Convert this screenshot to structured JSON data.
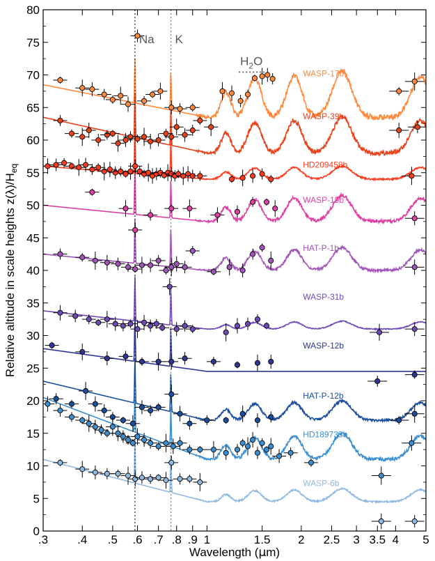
{
  "chart_data": {
    "type": "scatter",
    "title": "",
    "xlabel_parts": [
      "Wavelength  (",
      "µ",
      "m)"
    ],
    "ylabel_parts": [
      "Relative altitude in scale heights  z(λ)/H",
      "eq"
    ],
    "x_scale": "log",
    "xlim": [
      0.3,
      5.0
    ],
    "ylim": [
      0,
      80
    ],
    "x_ticks": [
      0.3,
      0.4,
      0.5,
      0.6,
      0.7,
      0.8,
      0.9,
      1,
      1.5,
      2,
      2.5,
      3,
      3.5,
      4,
      5
    ],
    "x_tick_labels": [
      ".3",
      ".4",
      ".5",
      ".6",
      ".7",
      ".8",
      ".9",
      "1",
      "1.5",
      "2",
      "2.5",
      "3",
      "3.5",
      "4",
      "5"
    ],
    "y_ticks": [
      0,
      5,
      10,
      15,
      20,
      25,
      30,
      35,
      40,
      45,
      50,
      55,
      60,
      65,
      70,
      75,
      80
    ],
    "y_tick_labels": [
      "0",
      "5",
      "10",
      "15",
      "20",
      "25",
      "30",
      "35",
      "40",
      "45",
      "50",
      "55",
      "60",
      "65",
      "70",
      "75",
      "80"
    ],
    "annotations": [
      {
        "text": "Na",
        "x": 0.589,
        "y": 75.5
      },
      {
        "text": "K",
        "x": 0.767,
        "y": 75.5
      },
      {
        "text_parts": [
          "H",
          "2",
          "O"
        ],
        "x": 1.4,
        "y": 71.5
      }
    ],
    "reference_lines": [
      {
        "x": 0.589,
        "style": "dotted",
        "color": "#444444"
      },
      {
        "x": 0.767,
        "style": "dotted",
        "color": "#888888"
      }
    ],
    "series": [
      {
        "name": "WASP-17b",
        "color": "#ff8a3d",
        "label_x": 2.3,
        "label_y": 69.8,
        "baseline": 63.5,
        "slope": 5.0,
        "feature_amp": 7.0,
        "points": [
          [
            0.34,
            69.2
          ],
          [
            0.4,
            68.0
          ],
          [
            0.43,
            67.8
          ],
          [
            0.47,
            67.0
          ],
          [
            0.5,
            66.2
          ],
          [
            0.53,
            66.8
          ],
          [
            0.56,
            65.5
          ],
          [
            0.6,
            76.0
          ],
          [
            0.63,
            66.0
          ],
          [
            0.67,
            67.0
          ],
          [
            0.71,
            67.5
          ],
          [
            0.77,
            65.0
          ],
          [
            0.82,
            64.8
          ],
          [
            0.9,
            65.0
          ],
          [
            1.12,
            67.5
          ],
          [
            1.2,
            67.2
          ],
          [
            1.28,
            66.0
          ],
          [
            1.35,
            67.0
          ],
          [
            1.42,
            69.5
          ],
          [
            1.5,
            69.8
          ],
          [
            1.56,
            70.0
          ],
          [
            1.62,
            69.4
          ],
          [
            4.1,
            67.5
          ],
          [
            4.6,
            69.0
          ]
        ]
      },
      {
        "name": "WASP-39b",
        "color": "#e8421b",
        "label_x": 2.3,
        "label_y": 63.2,
        "baseline": 58.0,
        "slope": 5.5,
        "feature_amp": 5.5,
        "points": [
          [
            0.34,
            63.0
          ],
          [
            0.37,
            61.0
          ],
          [
            0.4,
            60.5
          ],
          [
            0.42,
            61.5
          ],
          [
            0.45,
            60.0
          ],
          [
            0.48,
            60.8
          ],
          [
            0.5,
            61.0
          ],
          [
            0.52,
            59.5
          ],
          [
            0.55,
            60.0
          ],
          [
            0.57,
            60.5
          ],
          [
            0.6,
            60.2
          ],
          [
            0.63,
            60.5
          ],
          [
            0.66,
            59.8
          ],
          [
            0.7,
            60.0
          ],
          [
            0.74,
            61.0
          ],
          [
            0.77,
            60.5
          ],
          [
            0.8,
            62.0
          ],
          [
            0.85,
            60.8
          ],
          [
            0.9,
            61.5
          ],
          [
            0.95,
            63.0
          ],
          [
            1.03,
            62.0
          ],
          [
            4.1,
            61.5
          ],
          [
            4.7,
            62.0
          ]
        ]
      },
      {
        "name": "HD209458b",
        "color": "#ff3b1f",
        "label_x": 2.3,
        "label_y": 55.8,
        "baseline": 54.0,
        "slope": 2.0,
        "feature_amp": 2.0,
        "points": [
          [
            0.31,
            56.0
          ],
          [
            0.33,
            56.2
          ],
          [
            0.35,
            56.5
          ],
          [
            0.37,
            56.0
          ],
          [
            0.39,
            55.8
          ],
          [
            0.41,
            56.2
          ],
          [
            0.43,
            55.5
          ],
          [
            0.45,
            55.8
          ],
          [
            0.47,
            55.2
          ],
          [
            0.49,
            55.5
          ],
          [
            0.51,
            55.0
          ],
          [
            0.53,
            55.2
          ],
          [
            0.55,
            54.8
          ],
          [
            0.57,
            55.2
          ],
          [
            0.59,
            56.0
          ],
          [
            0.61,
            55.2
          ],
          [
            0.63,
            54.8
          ],
          [
            0.65,
            55.0
          ],
          [
            0.67,
            54.5
          ],
          [
            0.69,
            54.8
          ],
          [
            0.71,
            55.0
          ],
          [
            0.73,
            54.6
          ],
          [
            0.75,
            55.0
          ],
          [
            0.77,
            54.8
          ],
          [
            0.79,
            54.5
          ],
          [
            0.81,
            54.8
          ],
          [
            0.84,
            54.5
          ],
          [
            0.87,
            54.8
          ],
          [
            0.9,
            54.5
          ],
          [
            0.95,
            54.5
          ],
          [
            1.2,
            54.0
          ],
          [
            1.3,
            54.2
          ],
          [
            1.4,
            54.5
          ],
          [
            1.5,
            54.8
          ],
          [
            1.6,
            54.0
          ],
          [
            4.5,
            54.5
          ]
        ]
      },
      {
        "name": "WASP-19b",
        "color": "#dd3fa3",
        "label_x": 2.3,
        "label_y": 50.4,
        "baseline": 47.5,
        "slope": 2.5,
        "feature_amp": 4.0,
        "points": [
          [
            0.43,
            52.0
          ],
          [
            0.55,
            49.5
          ],
          [
            0.59,
            46.2
          ],
          [
            0.66,
            48.5
          ],
          [
            0.77,
            49.5
          ],
          [
            0.88,
            49.5
          ],
          [
            1.08,
            48.5
          ],
          [
            1.25,
            49.0
          ],
          [
            1.4,
            50.5
          ],
          [
            1.55,
            50.5
          ],
          [
            1.65,
            49.5
          ],
          [
            4.6,
            48.0
          ]
        ]
      },
      {
        "name": "HAT-P-1b",
        "color": "#a155b9",
        "label_x": 2.3,
        "label_y": 43.0,
        "baseline": 40.0,
        "slope": 2.5,
        "feature_amp": 3.5,
        "points": [
          [
            0.34,
            42.5
          ],
          [
            0.4,
            42.0
          ],
          [
            0.44,
            41.5
          ],
          [
            0.48,
            41.2
          ],
          [
            0.52,
            41.0
          ],
          [
            0.56,
            40.5
          ],
          [
            0.59,
            40.2
          ],
          [
            0.62,
            40.8
          ],
          [
            0.66,
            40.8
          ],
          [
            0.7,
            41.5
          ],
          [
            0.74,
            40.0
          ],
          [
            0.77,
            40.5
          ],
          [
            0.8,
            41.0
          ],
          [
            0.85,
            40.5
          ],
          [
            0.9,
            43.0
          ],
          [
            1.05,
            39.8
          ],
          [
            1.18,
            40.5
          ],
          [
            1.3,
            40.0
          ],
          [
            1.4,
            42.5
          ],
          [
            1.5,
            43.5
          ],
          [
            1.6,
            41.5
          ],
          [
            4.6,
            40.5
          ]
        ]
      },
      {
        "name": "WASP-31b",
        "color": "#6f4ab6",
        "label_x": 2.3,
        "label_y": 35.5,
        "baseline": 31.0,
        "slope": 2.8,
        "feature_amp": 1.2,
        "points": [
          [
            0.34,
            33.5
          ],
          [
            0.38,
            33.0
          ],
          [
            0.42,
            32.5
          ],
          [
            0.45,
            32.0
          ],
          [
            0.48,
            32.5
          ],
          [
            0.51,
            31.8
          ],
          [
            0.54,
            31.5
          ],
          [
            0.57,
            31.8
          ],
          [
            0.6,
            31.0
          ],
          [
            0.63,
            32.0
          ],
          [
            0.66,
            31.5
          ],
          [
            0.69,
            31.8
          ],
          [
            0.72,
            31.2
          ],
          [
            0.76,
            37.5
          ],
          [
            0.8,
            31.0
          ],
          [
            0.85,
            31.5
          ],
          [
            0.9,
            31.0
          ],
          [
            1.15,
            30.5
          ],
          [
            1.25,
            31.5
          ],
          [
            1.35,
            31.8
          ],
          [
            1.45,
            32.5
          ],
          [
            1.55,
            31.5
          ],
          [
            3.55,
            30.5
          ],
          [
            4.6,
            31.0
          ]
        ]
      },
      {
        "name": "WASP-12b",
        "color": "#2f3593",
        "label_x": 2.3,
        "label_y": 28.0,
        "baseline": 24.5,
        "slope": 3.5,
        "feature_amp": 0.0,
        "points": [
          [
            0.32,
            28.5
          ],
          [
            0.4,
            27.5
          ],
          [
            0.48,
            26.5
          ],
          [
            0.55,
            26.8
          ],
          [
            0.62,
            26.0
          ],
          [
            0.7,
            26.0
          ],
          [
            0.77,
            26.0
          ],
          [
            0.85,
            26.5
          ],
          [
            1.05,
            26.0
          ],
          [
            1.25,
            25.5
          ],
          [
            1.45,
            25.8
          ],
          [
            1.6,
            26.0
          ],
          [
            3.5,
            23.0
          ],
          [
            4.6,
            24.0
          ]
        ]
      },
      {
        "name": "HAT-P-12b",
        "color": "#1a4e9e",
        "label_x": 2.3,
        "label_y": 20.3,
        "baseline": 17.0,
        "slope": 6.0,
        "feature_amp": 3.0,
        "points": [
          [
            0.33,
            20.3
          ],
          [
            0.37,
            19.5
          ],
          [
            0.41,
            21.5
          ],
          [
            0.44,
            19.5
          ],
          [
            0.47,
            18.5
          ],
          [
            0.5,
            17.5
          ],
          [
            0.54,
            17.0
          ],
          [
            0.58,
            16.5
          ],
          [
            0.62,
            19.0
          ],
          [
            0.66,
            18.5
          ],
          [
            0.7,
            19.0
          ],
          [
            0.77,
            21.0
          ],
          [
            0.82,
            18.0
          ],
          [
            0.88,
            16.5
          ],
          [
            1.0,
            17.0
          ],
          [
            1.15,
            17.0
          ],
          [
            1.3,
            18.0
          ],
          [
            1.45,
            17.0
          ],
          [
            1.6,
            17.5
          ],
          [
            4.1,
            17.0
          ],
          [
            4.6,
            18.0
          ]
        ]
      },
      {
        "name": "HD189733b",
        "color": "#3b8fd1",
        "label_x": 2.3,
        "label_y": 14.4,
        "baseline": 11.0,
        "slope": 9.5,
        "feature_amp": 4.0,
        "points": [
          [
            0.31,
            19.5
          ],
          [
            0.34,
            18.5
          ],
          [
            0.37,
            17.5
          ],
          [
            0.4,
            17.0
          ],
          [
            0.42,
            16.5
          ],
          [
            0.44,
            16.0
          ],
          [
            0.46,
            15.5
          ],
          [
            0.48,
            15.0
          ],
          [
            0.5,
            16.0
          ],
          [
            0.52,
            15.0
          ],
          [
            0.54,
            14.5
          ],
          [
            0.56,
            14.0
          ],
          [
            0.58,
            13.5
          ],
          [
            0.6,
            14.5
          ],
          [
            0.63,
            14.0
          ],
          [
            0.66,
            13.5
          ],
          [
            0.7,
            13.0
          ],
          [
            0.74,
            13.5
          ],
          [
            0.78,
            13.0
          ],
          [
            0.82,
            13.5
          ],
          [
            0.88,
            12.5
          ],
          [
            0.95,
            12.5
          ],
          [
            1.05,
            12.5
          ],
          [
            1.15,
            12.0
          ],
          [
            1.25,
            12.5
          ],
          [
            1.3,
            13.5
          ],
          [
            1.35,
            13.0
          ],
          [
            1.4,
            14.0
          ],
          [
            1.45,
            12.0
          ],
          [
            1.5,
            13.5
          ],
          [
            1.55,
            12.5
          ],
          [
            1.6,
            13.0
          ],
          [
            1.7,
            11.5
          ],
          [
            1.85,
            12.0
          ],
          [
            2.15,
            10.5
          ],
          [
            3.6,
            8.5
          ],
          [
            4.5,
            13.5
          ]
        ]
      },
      {
        "name": "WASP-6b",
        "color": "#8fb9e3",
        "label_x": 2.3,
        "label_y": 6.9,
        "baseline": 4.5,
        "slope": 6.5,
        "feature_amp": 2.0,
        "points": [
          [
            0.34,
            10.5
          ],
          [
            0.4,
            9.5
          ],
          [
            0.44,
            9.0
          ],
          [
            0.48,
            8.8
          ],
          [
            0.52,
            8.8
          ],
          [
            0.56,
            8.5
          ],
          [
            0.59,
            8.0
          ],
          [
            0.62,
            8.2
          ],
          [
            0.66,
            8.0
          ],
          [
            0.7,
            8.2
          ],
          [
            0.74,
            7.8
          ],
          [
            0.77,
            10.5
          ],
          [
            0.82,
            8.0
          ],
          [
            0.88,
            8.0
          ],
          [
            0.95,
            7.5
          ],
          [
            3.6,
            1.5
          ],
          [
            4.6,
            1.5
          ]
        ]
      }
    ]
  }
}
